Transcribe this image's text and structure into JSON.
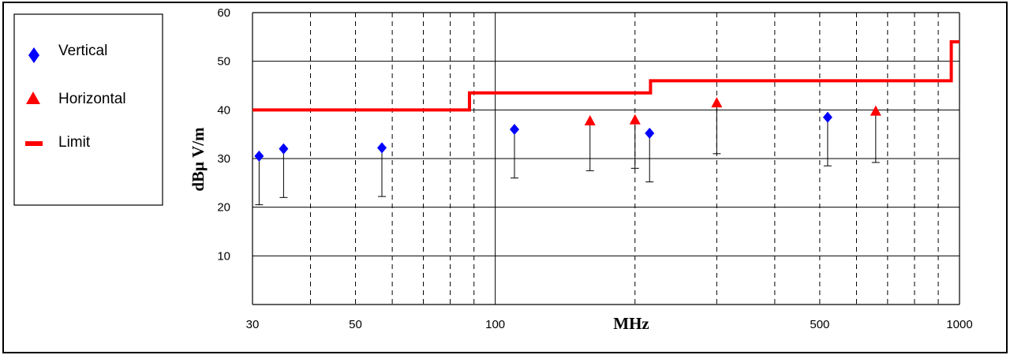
{
  "chart_data": {
    "type": "scatter",
    "title": "",
    "xlabel": "MHz",
    "ylabel": "dBμ V/m",
    "x_scale": "log",
    "xlim": [
      30,
      1000
    ],
    "ylim": [
      0,
      60
    ],
    "x_ticks": [
      30,
      50,
      100,
      500,
      1000
    ],
    "y_ticks": [
      10,
      20,
      30,
      40,
      50,
      60
    ],
    "grid": true,
    "legend_position": "left",
    "legend": [
      "Vertical",
      "Horizontal",
      "Limit"
    ],
    "series": [
      {
        "name": "Vertical",
        "marker": "diamond",
        "color": "#0000ff",
        "points": [
          {
            "x": 31,
            "top": 30.5,
            "bottom": 20.5
          },
          {
            "x": 35,
            "top": 32.0,
            "bottom": 22.0
          },
          {
            "x": 57,
            "top": 32.2,
            "bottom": 22.2
          },
          {
            "x": 110,
            "top": 36.0,
            "bottom": 26.0
          },
          {
            "x": 215,
            "top": 35.2,
            "bottom": 25.2
          },
          {
            "x": 520,
            "top": 38.5,
            "bottom": 28.5
          }
        ]
      },
      {
        "name": "Horizontal",
        "marker": "triangle",
        "color": "#ff0000",
        "points": [
          {
            "x": 160,
            "top": 37.8,
            "bottom": 27.5
          },
          {
            "x": 200,
            "top": 38.0,
            "bottom": 28.0
          },
          {
            "x": 300,
            "top": 41.5,
            "bottom": 31.0
          },
          {
            "x": 660,
            "top": 39.8,
            "bottom": 29.2
          }
        ]
      },
      {
        "name": "Limit",
        "marker": "line",
        "color": "#ff0000",
        "steps": [
          {
            "from": 30,
            "to": 88,
            "value": 40.0
          },
          {
            "from": 88,
            "to": 216,
            "value": 43.5
          },
          {
            "from": 216,
            "to": 960,
            "value": 46.0
          },
          {
            "from": 960,
            "to": 1000,
            "value": 54.0
          }
        ]
      }
    ]
  }
}
